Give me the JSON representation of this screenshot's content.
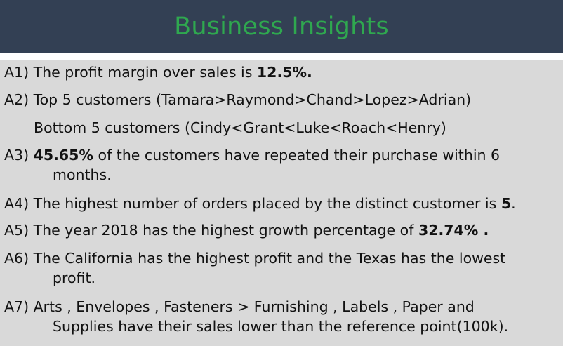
{
  "header": {
    "title": "Business Insights"
  },
  "items": {
    "a1": {
      "before": "A1) The profit margin over sales is ",
      "bold": "12.5%.",
      "after": ""
    },
    "a2": {
      "text": "A2) Top 5 customers (Tamara>Raymond>Chand>Lopez>Adrian)"
    },
    "a2b": {
      "text": "Bottom 5 customers (Cindy<Grant<Luke<Roach<Henry)"
    },
    "a3": {
      "prefix": "A3) ",
      "bold": "45.65%",
      "rest": " of the customers have repeated their purchase within 6",
      "cont": "months."
    },
    "a4": {
      "before": "A4) The highest number of orders placed by the distinct customer is ",
      "bold": "5",
      "after": "."
    },
    "a5": {
      "before": "A5) The year 2018 has the highest growth percentage of ",
      "bold": "32.74% .",
      "after": ""
    },
    "a6": {
      "text": "A6) The California has the highest profit and the Texas has the lowest",
      "cont": "profit."
    },
    "a7": {
      "text": "A7) Arts , Envelopes , Fasteners > Furnishing , Labels , Paper and",
      "cont": "Supplies have their sales lower than the reference point(100k)."
    }
  },
  "colors": {
    "header_bg": "#334054",
    "title": "#2fa84f",
    "panel_bg": "#d9d9d9"
  }
}
